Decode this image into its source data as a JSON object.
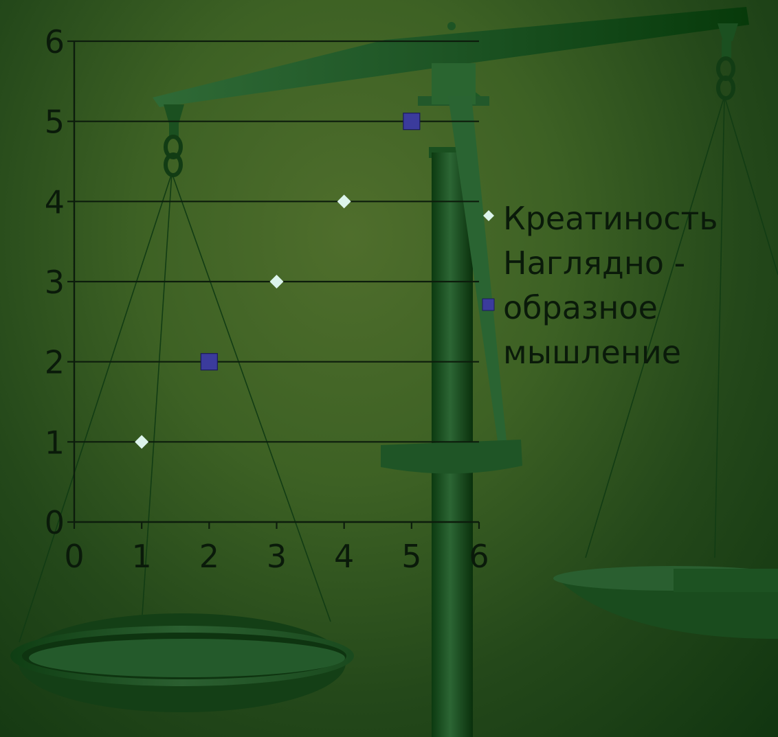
{
  "chart_data": {
    "type": "scatter",
    "xlim": [
      0,
      6
    ],
    "ylim": [
      0,
      6
    ],
    "x_ticks": [
      "0",
      "1",
      "2",
      "3",
      "4",
      "5",
      "6"
    ],
    "y_ticks": [
      "0",
      "1",
      "2",
      "3",
      "4",
      "5",
      "6"
    ],
    "grid": "horizontal",
    "legend_position": "right",
    "series": [
      {
        "name": "Креатиность",
        "marker": "diamond",
        "color": "#dcf4ec",
        "points": [
          [
            1,
            1
          ],
          [
            3,
            3
          ],
          [
            4,
            4
          ]
        ]
      },
      {
        "name": "Наглядно - образное мышление",
        "legend_lines": [
          "Наглядно -",
          "образное",
          "мышление"
        ],
        "marker": "square",
        "color": "#3b3b9c",
        "points": [
          [
            2,
            2
          ],
          [
            5,
            5
          ]
        ]
      }
    ]
  },
  "background": {
    "image": "balance-scale",
    "colors": {
      "dark": "#0e2f0e",
      "mid": "#2f6030",
      "light": "#4f6e2c"
    }
  }
}
